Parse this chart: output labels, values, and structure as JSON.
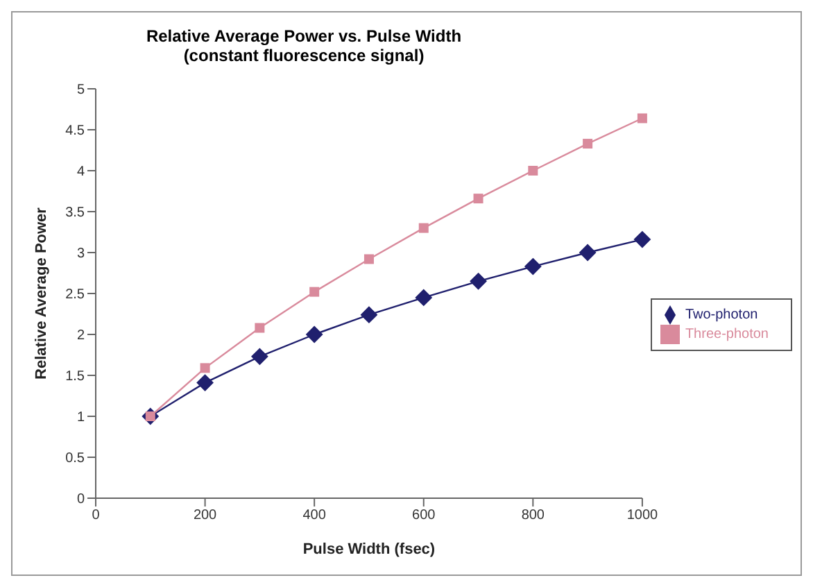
{
  "chart_data": {
    "type": "line",
    "title": "Relative Average Power vs. Pulse Width",
    "subtitle": "(constant fluorescence signal)",
    "xlabel": "Pulse Width (fsec)",
    "ylabel": "Relative Average Power",
    "x": [
      100,
      200,
      300,
      400,
      500,
      600,
      700,
      800,
      900,
      1000
    ],
    "series": [
      {
        "name": "Two-photon",
        "color": "#20206e",
        "marker": "diamond",
        "values": [
          1,
          1.41,
          1.73,
          2,
          2.24,
          2.45,
          2.65,
          2.83,
          3,
          3.16
        ]
      },
      {
        "name": "Three-photon",
        "color": "#d98a9c",
        "marker": "square",
        "values": [
          1,
          1.59,
          2.08,
          2.52,
          2.92,
          3.3,
          3.66,
          4,
          4.33,
          4.64
        ]
      }
    ],
    "xlim": [
      0,
      1000
    ],
    "xticks": [
      0,
      200,
      400,
      600,
      800,
      1000
    ],
    "ylim": [
      0,
      5
    ],
    "yticks": [
      0,
      0.5,
      1,
      1.5,
      2,
      2.5,
      3,
      3.5,
      4,
      4.5,
      5
    ],
    "grid": false,
    "legend": "right"
  }
}
